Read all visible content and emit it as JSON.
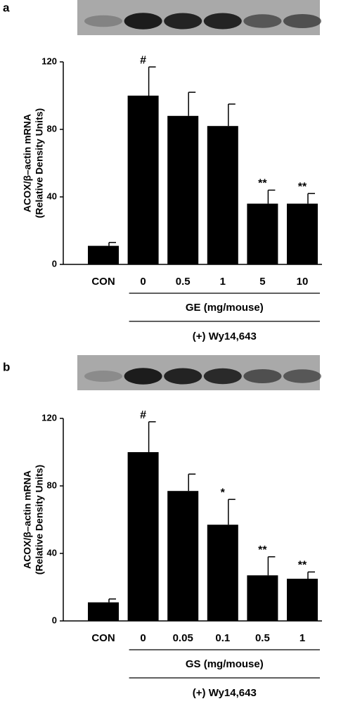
{
  "chart_data": [
    {
      "type": "bar",
      "panel_label": "a",
      "ylabel": [
        "ACOX/β–actin mRNA",
        "(Relative Density Units)"
      ],
      "categories": [
        "CON",
        "0",
        "0.5",
        "1",
        "5",
        "10"
      ],
      "values": [
        11,
        100,
        88,
        82,
        36,
        36
      ],
      "errors": [
        2,
        17,
        14,
        13,
        8,
        6
      ],
      "annotations": [
        null,
        "#",
        null,
        null,
        "**",
        "**"
      ],
      "group_label": "GE (mg/mouse)",
      "treatment_label": "(+) Wy14,643",
      "color": "#000000",
      "ylim": [
        0,
        120
      ],
      "yticks": [
        0,
        40,
        80,
        120
      ]
    },
    {
      "type": "bar",
      "panel_label": "b",
      "ylabel": [
        "ACOX/β–actin mRNA",
        "(Relative Density Units)"
      ],
      "categories": [
        "CON",
        "0",
        "0.05",
        "0.1",
        "0.5",
        "1"
      ],
      "values": [
        11,
        100,
        77,
        57,
        27,
        25
      ],
      "errors": [
        2,
        18,
        10,
        15,
        11,
        4
      ],
      "annotations": [
        null,
        "#",
        null,
        "*",
        "**",
        "**"
      ],
      "group_label": "GS (mg/mouse)",
      "treatment_label": "(+) Wy14,643",
      "color": "#000000",
      "ylim": [
        0,
        120
      ],
      "yticks": [
        0,
        40,
        80,
        120
      ]
    }
  ]
}
